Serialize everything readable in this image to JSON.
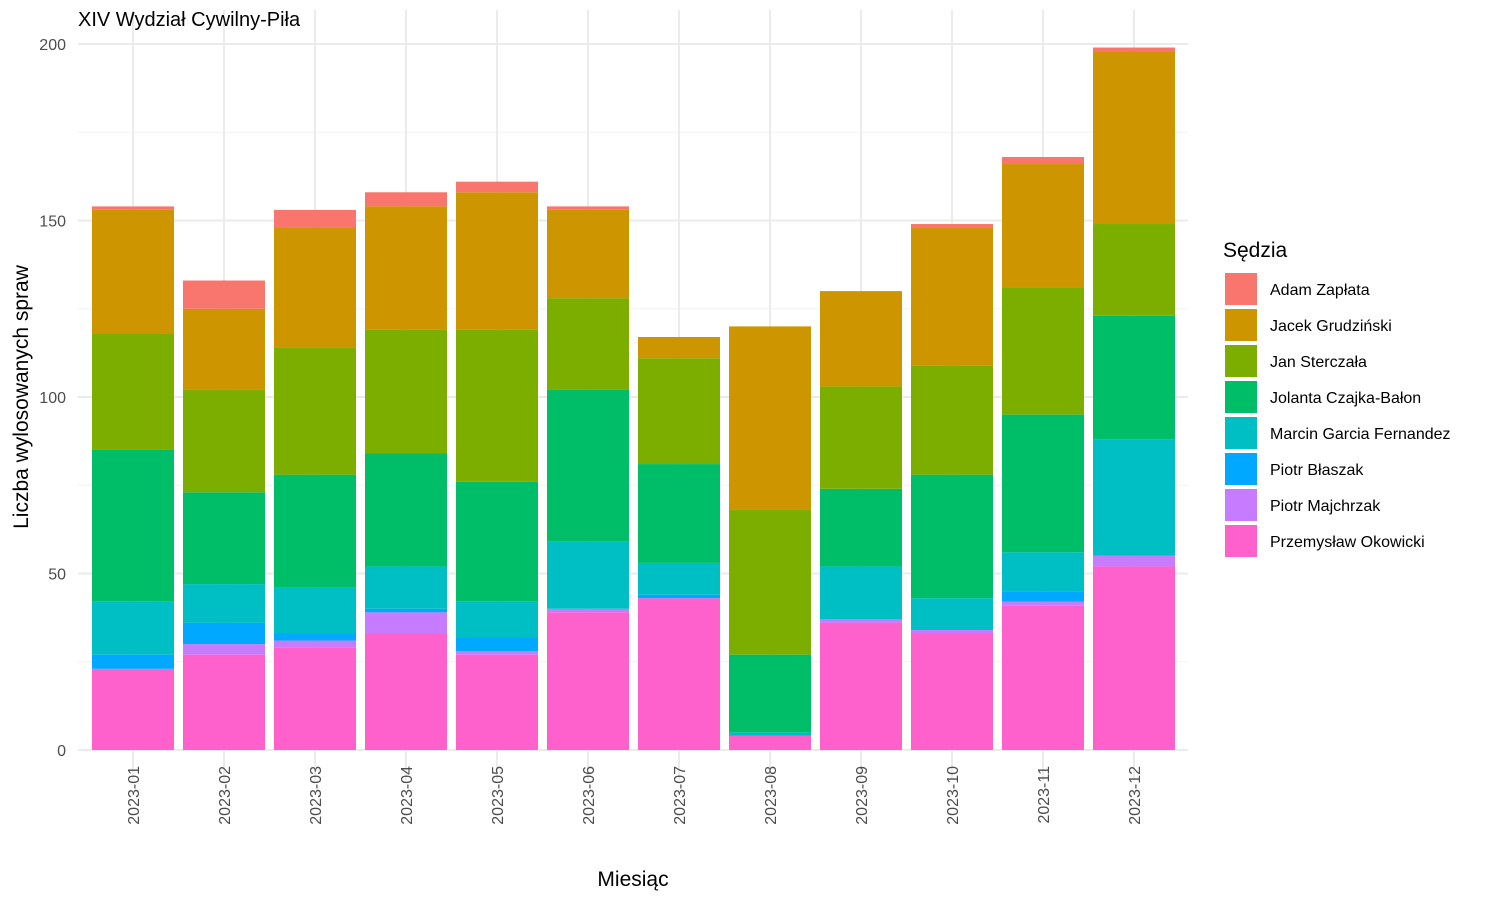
{
  "chart_data": {
    "type": "bar",
    "stacked": true,
    "title": "XIV Wydział Cywilny-Piła",
    "xlabel": "Miesiąc",
    "ylabel": "Liczba wylosowanych spraw",
    "ylim": [
      0,
      200
    ],
    "yticks": [
      0,
      50,
      100,
      150,
      200
    ],
    "grid": true,
    "legend_title": "Sędzia",
    "legend_position": "right",
    "categories": [
      "2023-01",
      "2023-02",
      "2023-03",
      "2023-04",
      "2023-05",
      "2023-06",
      "2023-07",
      "2023-08",
      "2023-09",
      "2023-10",
      "2023-11",
      "2023-12"
    ],
    "series": [
      {
        "name": "Przemysław Okowicki",
        "color": "#FF61CC",
        "values": [
          23,
          27,
          29,
          33,
          27,
          39,
          43,
          4,
          36,
          33,
          41,
          52
        ]
      },
      {
        "name": "Piotr Majchrzak",
        "color": "#C77CFF",
        "values": [
          0,
          3,
          2,
          6,
          1,
          1,
          0,
          0,
          1,
          1,
          1,
          3
        ]
      },
      {
        "name": "Piotr Błaszak",
        "color": "#00A9FF",
        "values": [
          4,
          6,
          2,
          1,
          4,
          0,
          1,
          0,
          0,
          0,
          3,
          0
        ]
      },
      {
        "name": "Marcin Garcia Fernandez",
        "color": "#00BFC4",
        "values": [
          15,
          11,
          13,
          12,
          10,
          19,
          9,
          1,
          15,
          9,
          11,
          33
        ]
      },
      {
        "name": "Jolanta Czajka-Bałon",
        "color": "#00BE67",
        "values": [
          43,
          26,
          32,
          32,
          34,
          43,
          28,
          22,
          22,
          35,
          39,
          35
        ]
      },
      {
        "name": "Jan Sterczała",
        "color": "#7CAE00",
        "values": [
          33,
          29,
          36,
          35,
          43,
          26,
          30,
          41,
          29,
          31,
          36,
          26
        ]
      },
      {
        "name": "Jacek Grudziński",
        "color": "#CD9600",
        "values": [
          35,
          23,
          34,
          35,
          39,
          25,
          6,
          52,
          27,
          39,
          35,
          49
        ]
      },
      {
        "name": "Adam Zapłata",
        "color": "#F8766D",
        "values": [
          1,
          8,
          5,
          4,
          3,
          1,
          0,
          0,
          0,
          1,
          2,
          1
        ]
      }
    ],
    "legend_order": [
      "Adam Zapłata",
      "Jacek Grudziński",
      "Jan Sterczała",
      "Jolanta Czajka-Bałon",
      "Marcin Garcia Fernandez",
      "Piotr Błaszak",
      "Piotr Majchrzak",
      "Przemysław Okowicki"
    ]
  }
}
